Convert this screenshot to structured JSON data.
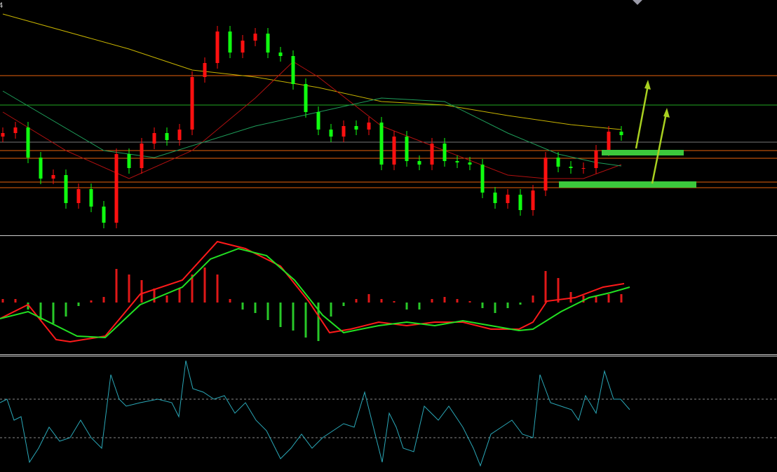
{
  "chart_data": [
    {
      "type": "candlestick",
      "label": "4",
      "xlim": [
        0,
        1108
      ],
      "ylim": [
        0,
        335
      ],
      "x": [
        4,
        22,
        40,
        58,
        76,
        94,
        112,
        130,
        148,
        166,
        184,
        202,
        220,
        238,
        256,
        274,
        292,
        310,
        328,
        346,
        364,
        382,
        400,
        418,
        436,
        454,
        472,
        490,
        508,
        526,
        544,
        562,
        580,
        598,
        616,
        634,
        652,
        670,
        688,
        706,
        724,
        742,
        760,
        778,
        796,
        814,
        832,
        850,
        868,
        886
      ],
      "open": [
        140,
        145,
        153,
        110,
        80,
        85,
        45,
        65,
        40,
        17,
        115,
        95,
        130,
        145,
        135,
        150,
        225,
        245,
        290,
        260,
        277,
        287,
        260,
        255,
        215,
        175,
        150,
        140,
        155,
        150,
        160,
        100,
        140,
        105,
        100,
        130,
        105,
        103,
        100,
        60,
        45,
        57,
        35,
        63,
        110,
        97,
        95,
        95,
        120,
        147
      ],
      "high": [
        153,
        161,
        161,
        118,
        93,
        93,
        73,
        73,
        48,
        123,
        123,
        138,
        153,
        153,
        158,
        233,
        253,
        298,
        298,
        285,
        295,
        295,
        268,
        263,
        223,
        183,
        158,
        163,
        163,
        168,
        168,
        148,
        148,
        113,
        138,
        138,
        113,
        111,
        108,
        68,
        65,
        65,
        71,
        118,
        118,
        105,
        103,
        128,
        155,
        155
      ],
      "low": [
        132,
        137,
        102,
        72,
        72,
        37,
        37,
        32,
        9,
        9,
        87,
        87,
        122,
        127,
        127,
        142,
        217,
        237,
        252,
        252,
        269,
        252,
        247,
        207,
        167,
        142,
        132,
        132,
        142,
        142,
        92,
        92,
        97,
        92,
        92,
        97,
        95,
        92,
        52,
        37,
        37,
        27,
        27,
        55,
        89,
        87,
        87,
        87,
        112,
        134
      ],
      "close": [
        145,
        153,
        110,
        80,
        85,
        45,
        65,
        40,
        17,
        115,
        95,
        130,
        145,
        135,
        150,
        225,
        245,
        290,
        260,
        277,
        287,
        260,
        255,
        215,
        175,
        150,
        140,
        155,
        150,
        160,
        100,
        140,
        105,
        100,
        130,
        105,
        103,
        100,
        60,
        45,
        57,
        35,
        63,
        110,
        97,
        95,
        95,
        120,
        147,
        142
      ],
      "up_color": "#ff1010",
      "down_color": "#10ff10",
      "levels": [
        {
          "value": 227,
          "color": "#e8620c"
        },
        {
          "value": 185,
          "color": "#22aa22"
        },
        {
          "value": 132,
          "color": "#777777"
        },
        {
          "value": 120,
          "color": "#e8620c"
        },
        {
          "value": 109,
          "color": "#e8620c"
        },
        {
          "value": 75,
          "color": "#e8620c"
        },
        {
          "value": 67,
          "color": "#e8620c"
        }
      ],
      "series": [
        {
          "color": "#c8b400",
          "x": [
            4,
            184,
            274,
            364,
            454,
            544,
            634,
            724,
            814,
            886
          ],
          "values": [
            315,
            265,
            235,
            225,
            210,
            190,
            185,
            170,
            157,
            150
          ]
        },
        {
          "color": "#b01010",
          "x": [
            4,
            94,
            184,
            274,
            364,
            418,
            454,
            544,
            634,
            724,
            778,
            832,
            886
          ],
          "values": [
            175,
            120,
            80,
            120,
            195,
            247,
            225,
            155,
            120,
            85,
            80,
            80,
            100
          ]
        },
        {
          "color": "#1e9e5a",
          "x": [
            4,
            148,
            220,
            364,
            454,
            544,
            634,
            724,
            796,
            850,
            886
          ],
          "values": [
            205,
            120,
            110,
            155,
            175,
            195,
            190,
            145,
            115,
            103,
            98
          ]
        }
      ]
    },
    {
      "type": "macd",
      "xlim": [
        0,
        1108
      ],
      "ylim": [
        -73,
        92
      ],
      "x": [
        4,
        22,
        40,
        58,
        76,
        94,
        112,
        130,
        148,
        166,
        184,
        202,
        220,
        238,
        256,
        274,
        292,
        310,
        328,
        346,
        364,
        382,
        400,
        418,
        436,
        454,
        472,
        490,
        508,
        526,
        544,
        562,
        580,
        598,
        616,
        634,
        652,
        670,
        688,
        706,
        724,
        742,
        760,
        778,
        796,
        814,
        832,
        850,
        868,
        886
      ],
      "values": [
        5,
        5,
        -10,
        -25,
        -30,
        -20,
        -5,
        3,
        8,
        48,
        40,
        32,
        20,
        10,
        20,
        40,
        50,
        40,
        5,
        -10,
        -15,
        -25,
        -35,
        -40,
        -50,
        -55,
        -20,
        -5,
        5,
        12,
        5,
        2,
        -10,
        -10,
        5,
        8,
        5,
        2,
        -8,
        -15,
        -8,
        -3,
        10,
        45,
        35,
        15,
        10,
        10,
        12,
        12
      ],
      "pos_color": "#e01818",
      "neg_color": "#28c828",
      "series": [
        {
          "color": "#ff1a1a",
          "x": [
            0,
            40,
            80,
            100,
            150,
            200,
            260,
            310,
            350,
            400,
            440,
            470,
            500,
            540,
            580,
            620,
            660,
            700,
            740,
            760,
            780,
            820,
            860,
            890
          ],
          "values": [
            -23,
            -3,
            -53,
            -56,
            -48,
            12,
            32,
            87,
            77,
            52,
            2,
            -43,
            -38,
            -28,
            -33,
            -28,
            -28,
            -38,
            -38,
            -28,
            2,
            7,
            22,
            27
          ]
        },
        {
          "color": "#22e022",
          "x": [
            0,
            40,
            80,
            110,
            150,
            200,
            260,
            300,
            340,
            380,
            420,
            460,
            490,
            540,
            580,
            620,
            660,
            700,
            740,
            760,
            800,
            840,
            870,
            898
          ],
          "values": [
            -23,
            -13,
            -33,
            -48,
            -50,
            -3,
            22,
            62,
            77,
            67,
            32,
            -18,
            -43,
            -33,
            -28,
            -33,
            -26,
            -33,
            -40,
            -38,
            -13,
            7,
            14,
            22
          ]
        }
      ]
    },
    {
      "type": "line",
      "xlim": [
        0,
        1108
      ],
      "ylim": [
        0,
        163
      ],
      "levels": [
        103,
        48
      ],
      "level_dash": true,
      "series": [
        {
          "color": "#2aa8b8",
          "x": [
            0,
            10,
            20,
            30,
            42,
            55,
            70,
            85,
            100,
            115,
            130,
            145,
            158,
            170,
            180,
            200,
            225,
            245,
            255,
            265,
            275,
            290,
            305,
            320,
            335,
            350,
            365,
            380,
            400,
            415,
            430,
            445,
            460,
            475,
            490,
            505,
            520,
            530,
            545,
            555,
            565,
            575,
            590,
            605,
            615,
            625,
            640,
            660,
            675,
            685,
            700,
            715,
            730,
            745,
            760,
            770,
            785,
            800,
            815,
            825,
            835,
            850,
            862,
            875,
            885,
            898
          ],
          "values": [
            98,
            103,
            73,
            78,
            13,
            33,
            63,
            43,
            48,
            73,
            48,
            33,
            138,
            103,
            93,
            98,
            103,
            98,
            78,
            158,
            118,
            113,
            103,
            108,
            83,
            98,
            73,
            58,
            18,
            33,
            53,
            33,
            48,
            58,
            68,
            63,
            113,
            73,
            13,
            83,
            63,
            33,
            28,
            93,
            83,
            73,
            93,
            63,
            33,
            8,
            53,
            63,
            73,
            53,
            48,
            138,
            98,
            93,
            88,
            73,
            108,
            83,
            143,
            103,
            103,
            88
          ]
        }
      ]
    }
  ]
}
